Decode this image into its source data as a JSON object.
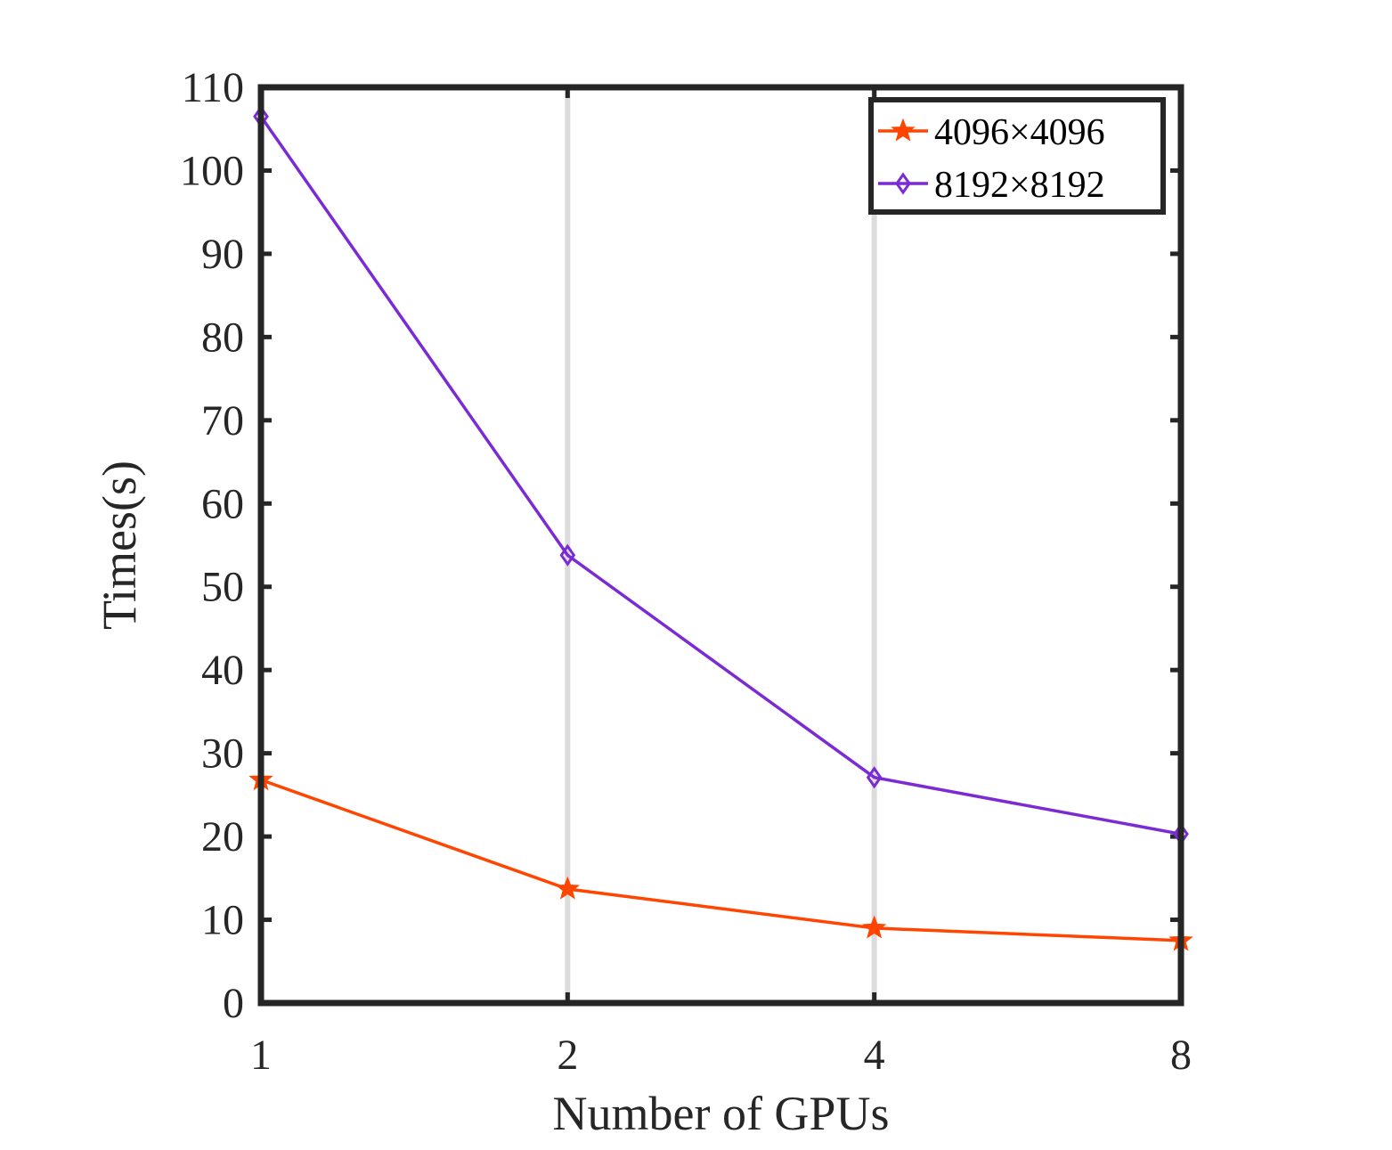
{
  "chart_data": {
    "type": "line",
    "title": "",
    "xlabel": "Number of GPUs",
    "ylabel": "Times(s)",
    "x": [
      1,
      2,
      4,
      8
    ],
    "x_tick_labels": [
      "1",
      "2",
      "4",
      "8"
    ],
    "x_scale": "log2",
    "xlim": [
      1,
      8
    ],
    "ylim": [
      0,
      110
    ],
    "y_ticks": [
      0,
      10,
      20,
      30,
      40,
      50,
      60,
      70,
      80,
      90,
      100,
      110
    ],
    "y_tick_labels": [
      "0",
      "10",
      "20",
      "30",
      "40",
      "50",
      "60",
      "70",
      "80",
      "90",
      "100",
      "110"
    ],
    "grid": "x-only",
    "legend_position": "top-right",
    "series": [
      {
        "name": "4096×4096",
        "marker": "star",
        "color": "#FF4500",
        "values": [
          26.8,
          13.7,
          9.0,
          7.5
        ]
      },
      {
        "name": "8192×8192",
        "marker": "diamond",
        "color": "#7B2BD3",
        "values": [
          106.5,
          53.8,
          27.1,
          20.3
        ]
      }
    ]
  }
}
